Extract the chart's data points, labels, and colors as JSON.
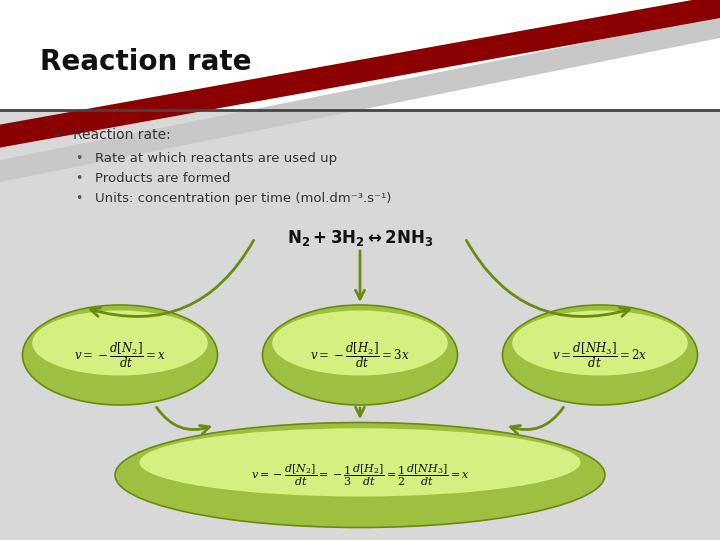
{
  "title": "Reaction rate",
  "title_fontsize": 20,
  "title_fontweight": "bold",
  "bg_white": "#ffffff",
  "bg_grey": "#d8d8d8",
  "header_line_color": "#333333",
  "bullet_lines": [
    "Reaction rate:",
    "Rate at which reactants are used up",
    "Products are formed",
    "Units: concentration per time (mol.dm⁻³.s⁻¹)"
  ],
  "eq_label": "$\\mathbf{N_2 + 3H_2 \\leftrightarrow 2NH_3}$",
  "ell_outer_color": "#9dc040",
  "ell_inner_color": "#d4f080",
  "ell_edge_color": "#6a8a10",
  "arrow_color": "#6a8a10",
  "swoosh_dark_red": "#8b0000",
  "swoosh_light_grey": "#c8c8c8"
}
